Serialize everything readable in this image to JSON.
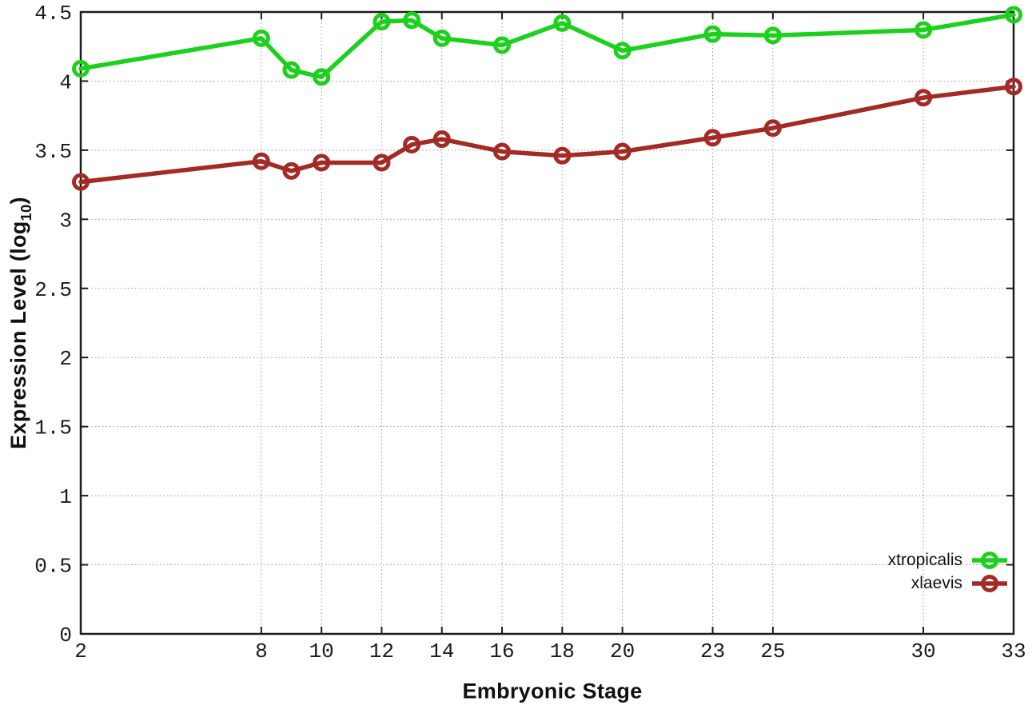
{
  "chart_data": {
    "type": "line",
    "title": "",
    "xlabel": "Embryonic Stage",
    "ylabel": "Expression Level (log10)",
    "ylabel_parts": {
      "prefix": "Expression Level (log",
      "sub": "10",
      "suffix": ")"
    },
    "x": [
      2,
      8,
      9,
      10,
      12,
      13,
      14,
      16,
      18,
      20,
      23,
      25,
      30,
      33
    ],
    "x_ticks": [
      2,
      8,
      10,
      12,
      14,
      16,
      18,
      20,
      23,
      25,
      30,
      33
    ],
    "y_ticks": [
      "0",
      "0.5",
      "1",
      "1.5",
      "2",
      "2.5",
      "3",
      "3.5",
      "4",
      "4.5"
    ],
    "xlim": [
      2,
      33
    ],
    "ylim": [
      0,
      4.5
    ],
    "grid": true,
    "legend_position": "bottom-right",
    "series": [
      {
        "name": "xtropicalis",
        "color": "#1BD11B",
        "values": [
          4.09,
          4.31,
          4.08,
          4.03,
          4.43,
          4.44,
          4.31,
          4.26,
          4.42,
          4.22,
          4.34,
          4.33,
          4.37,
          4.48
        ]
      },
      {
        "name": "xlaevis",
        "color": "#A32B26",
        "values": [
          3.27,
          3.42,
          3.35,
          3.41,
          3.41,
          3.54,
          3.58,
          3.49,
          3.46,
          3.49,
          3.59,
          3.66,
          3.88,
          3.96
        ]
      }
    ]
  }
}
